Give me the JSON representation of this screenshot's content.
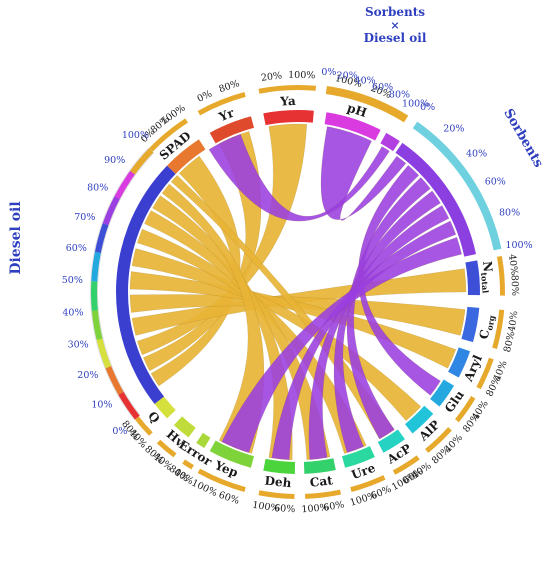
{
  "colors": {
    "ribbon_gold": "#e8b436",
    "ribbon_purple": "#9b3fe0",
    "group_label": "#2e3fbf",
    "track_gold": "#e6a92b"
  },
  "groups": {
    "diesel": "Diesel oil",
    "sorbents": "Sorbents",
    "interaction_line1": "Sorbents",
    "interaction_line2": "×",
    "interaction_line3": "Diesel oil"
  },
  "diesel_scale": [
    "0%",
    "10%",
    "20%",
    "30%",
    "40%",
    "50%",
    "60%",
    "70%",
    "80%",
    "90%",
    "100%"
  ],
  "sorbents_scale": [
    "0%",
    "20%",
    "40%",
    "60%",
    "80%",
    "100%"
  ],
  "interaction_scale": [
    "0%",
    "20%",
    "40%",
    "60%",
    "80%",
    "100%"
  ],
  "variables": [
    {
      "label": "SPAD",
      "color": "#e8782f",
      "ticks": [
        "0%",
        "80%",
        "100%"
      ]
    },
    {
      "label": "Yr",
      "color": "#e04a2c",
      "ticks": [
        "0%",
        "80%"
      ]
    },
    {
      "label": "Ya",
      "color": "#e63232",
      "ticks": [
        "20%",
        "100%"
      ]
    },
    {
      "label": "pH",
      "color": "#d93be0",
      "ticks": [
        "100%",
        "20%"
      ]
    },
    {
      "label": "N",
      "sub": "total",
      "color": "#3d4fd6",
      "ticks": [
        "40%",
        "80%"
      ]
    },
    {
      "label": "C",
      "sub": "org",
      "color": "#3a68e0",
      "ticks": [
        "40%",
        "80%"
      ]
    },
    {
      "label": "Aryl",
      "color": "#2f86e3",
      "ticks": [
        "40%",
        "80%"
      ]
    },
    {
      "label": "Glu",
      "color": "#23a9e0",
      "ticks": [
        "40%",
        "80%"
      ]
    },
    {
      "label": "AlP",
      "color": "#22c4d9",
      "ticks": [
        "40%",
        "80%"
      ]
    },
    {
      "label": "AcP",
      "color": "#26d3c3",
      "ticks": [
        "40%",
        "60%",
        "100%"
      ]
    },
    {
      "label": "Ure",
      "color": "#2bd9a0",
      "ticks": [
        "60%",
        "100%"
      ]
    },
    {
      "label": "Cat",
      "color": "#33d16c",
      "ticks": [
        "60%",
        "100%"
      ]
    },
    {
      "label": "Deh",
      "color": "#4cd43c",
      "ticks": [
        "60%",
        "100%"
      ]
    },
    {
      "label": "Yep",
      "color": "#7ed33a",
      "ticks": [
        "60%",
        "100%"
      ]
    },
    {
      "label": "Error",
      "color": "#a8d83a",
      "ticks": [
        "40%",
        "80%"
      ]
    },
    {
      "label": "Hv",
      "color": "#bfdc3a",
      "ticks": [
        "40%",
        "80%"
      ]
    },
    {
      "label": "Q",
      "color": "#d6e03d",
      "ticks": [
        "40%",
        "80%"
      ]
    }
  ]
}
